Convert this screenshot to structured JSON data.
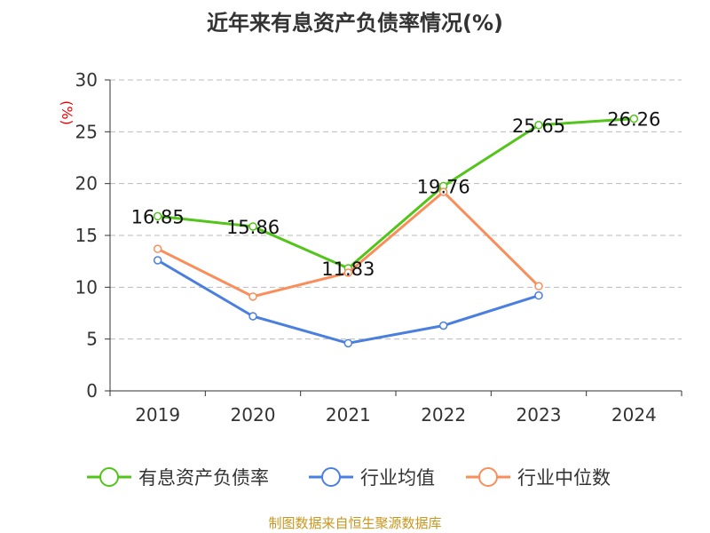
{
  "chart_data": {
    "type": "line",
    "title": "近年来有息资产负债率情况(%)",
    "ylabel": "(%)",
    "xlabel": "",
    "categories": [
      "2019",
      "2020",
      "2021",
      "2022",
      "2023",
      "2024"
    ],
    "ylim": [
      0,
      30
    ],
    "yticks": [
      0,
      5,
      10,
      15,
      20,
      25,
      30
    ],
    "grid": true,
    "legend_position": "bottom",
    "series": [
      {
        "name": "有息资产负债率",
        "color": "#52c41a",
        "values": [
          16.85,
          15.86,
          11.83,
          19.76,
          25.65,
          26.26
        ],
        "labels": [
          "16.85",
          "15.86",
          "11.83",
          "19.76",
          "25.65",
          "26.26"
        ]
      },
      {
        "name": "行业均值",
        "color": "#4a7fe0",
        "values": [
          12.6,
          7.2,
          4.6,
          6.3,
          9.2,
          null
        ]
      },
      {
        "name": "行业中位数",
        "color": "#f98e5a",
        "values": [
          13.7,
          9.1,
          11.4,
          19.2,
          10.1,
          null
        ]
      }
    ]
  },
  "source": "制图数据来自恒生聚源数据库"
}
